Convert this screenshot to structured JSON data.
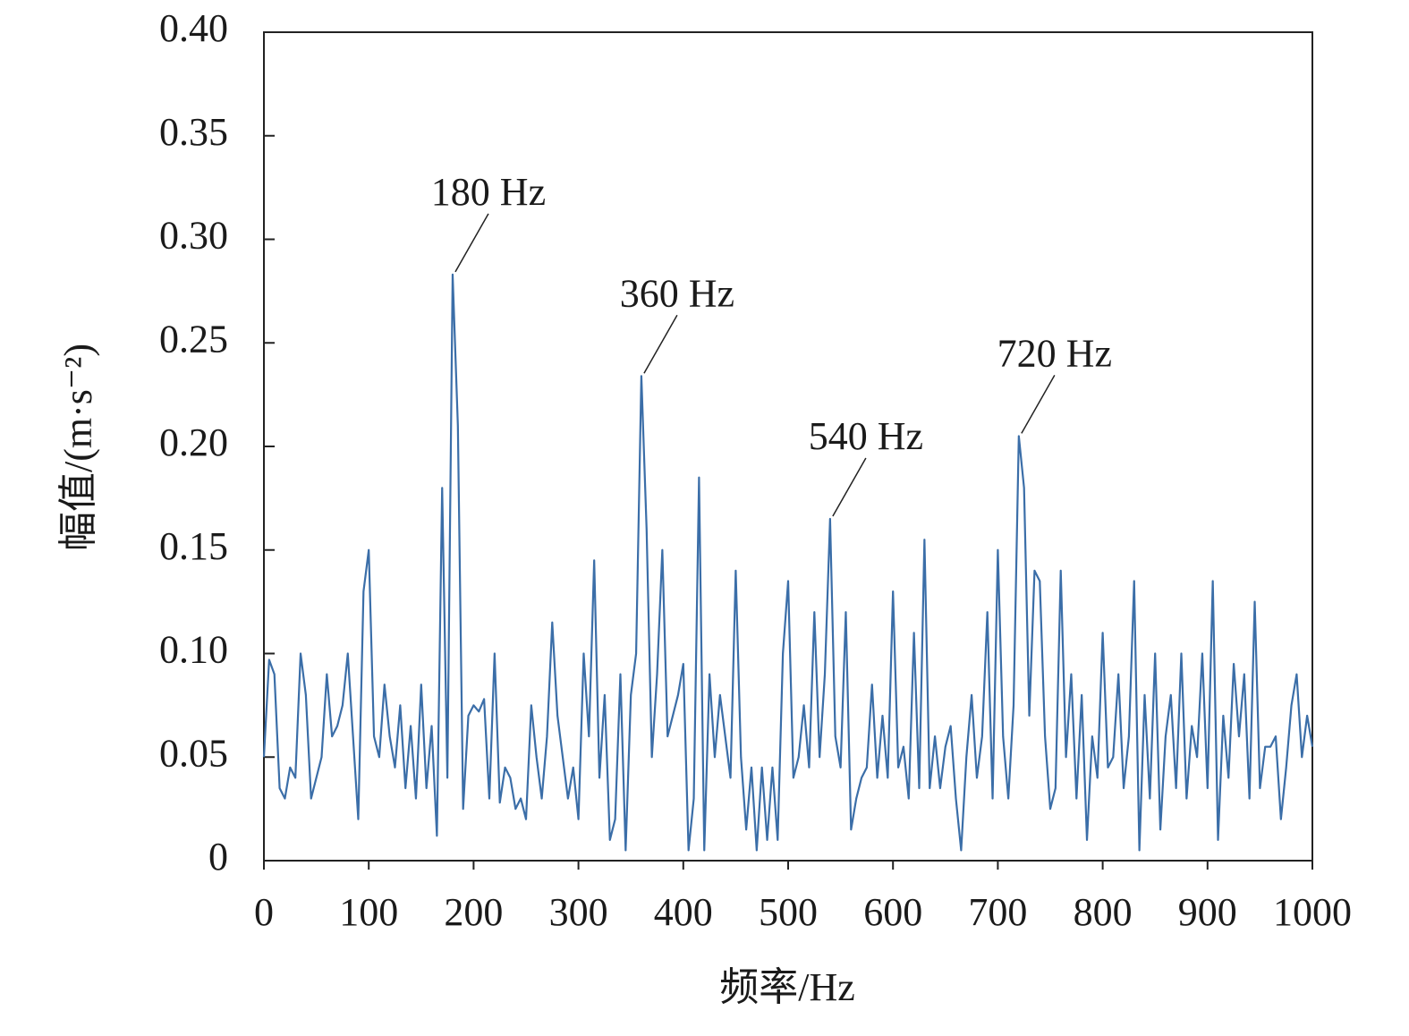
{
  "chart_data": {
    "type": "line",
    "xlabel": "频率/Hz",
    "ylabel": "幅值/(m·s⁻²)",
    "xlim": [
      0,
      1000
    ],
    "ylim": [
      0,
      0.4
    ],
    "xticks": [
      0,
      100,
      200,
      300,
      400,
      500,
      600,
      700,
      800,
      900,
      1000
    ],
    "yticks": [
      0,
      0.05,
      {
        "value": 0.1,
        "label": "0.10"
      },
      0.15,
      {
        "value": 0.2,
        "label": "0.20"
      },
      0.25,
      {
        "value": 0.3,
        "label": "0.30"
      },
      0.35,
      {
        "value": 0.4,
        "label": "0.40"
      }
    ],
    "grid": false,
    "series": [
      {
        "color": "#3b6ea8",
        "x": [
          0,
          5,
          10,
          15,
          20,
          25,
          30,
          35,
          40,
          45,
          50,
          55,
          60,
          65,
          70,
          75,
          80,
          85,
          90,
          95,
          100,
          105,
          110,
          115,
          120,
          125,
          130,
          135,
          140,
          145,
          150,
          155,
          160,
          165,
          170,
          175,
          180,
          185,
          190,
          195,
          200,
          205,
          210,
          215,
          220,
          225,
          230,
          235,
          240,
          245,
          250,
          255,
          260,
          265,
          270,
          275,
          280,
          285,
          290,
          295,
          300,
          305,
          310,
          315,
          320,
          325,
          330,
          335,
          340,
          345,
          350,
          355,
          360,
          365,
          370,
          375,
          380,
          385,
          390,
          395,
          400,
          405,
          410,
          415,
          420,
          425,
          430,
          435,
          440,
          445,
          450,
          455,
          460,
          465,
          470,
          475,
          480,
          485,
          490,
          495,
          500,
          505,
          510,
          515,
          520,
          525,
          530,
          535,
          540,
          545,
          550,
          555,
          560,
          565,
          570,
          575,
          580,
          585,
          590,
          595,
          600,
          605,
          610,
          615,
          620,
          625,
          630,
          635,
          640,
          645,
          650,
          655,
          660,
          665,
          670,
          675,
          680,
          685,
          690,
          695,
          700,
          705,
          710,
          715,
          720,
          725,
          730,
          735,
          740,
          745,
          750,
          755,
          760,
          765,
          770,
          775,
          780,
          785,
          790,
          795,
          800,
          805,
          810,
          815,
          820,
          825,
          830,
          835,
          840,
          845,
          850,
          855,
          860,
          865,
          870,
          875,
          880,
          885,
          890,
          895,
          900,
          905,
          910,
          915,
          920,
          925,
          930,
          935,
          940,
          945,
          950,
          955,
          960,
          965,
          970,
          975,
          980,
          985,
          990,
          995,
          1000
        ],
        "values": [
          0.05,
          0.097,
          0.09,
          0.035,
          0.03,
          0.045,
          0.04,
          0.1,
          0.08,
          0.03,
          0.04,
          0.05,
          0.09,
          0.06,
          0.065,
          0.075,
          0.1,
          0.06,
          0.02,
          0.13,
          0.15,
          0.06,
          0.05,
          0.085,
          0.06,
          0.045,
          0.075,
          0.035,
          0.065,
          0.03,
          0.085,
          0.035,
          0.065,
          0.012,
          0.18,
          0.04,
          0.283,
          0.21,
          0.025,
          0.07,
          0.075,
          0.072,
          0.078,
          0.03,
          0.1,
          0.028,
          0.045,
          0.04,
          0.025,
          0.03,
          0.02,
          0.075,
          0.05,
          0.03,
          0.06,
          0.115,
          0.07,
          0.05,
          0.03,
          0.045,
          0.02,
          0.1,
          0.06,
          0.145,
          0.04,
          0.08,
          0.01,
          0.02,
          0.09,
          0.005,
          0.08,
          0.1,
          0.234,
          0.16,
          0.05,
          0.09,
          0.15,
          0.06,
          0.07,
          0.08,
          0.095,
          0.005,
          0.03,
          0.185,
          0.005,
          0.09,
          0.05,
          0.08,
          0.06,
          0.04,
          0.14,
          0.05,
          0.015,
          0.045,
          0.005,
          0.045,
          0.01,
          0.045,
          0.01,
          0.1,
          0.135,
          0.04,
          0.05,
          0.075,
          0.045,
          0.12,
          0.05,
          0.09,
          0.165,
          0.06,
          0.045,
          0.12,
          0.015,
          0.03,
          0.04,
          0.045,
          0.085,
          0.04,
          0.07,
          0.04,
          0.13,
          0.045,
          0.055,
          0.03,
          0.11,
          0.035,
          0.155,
          0.035,
          0.06,
          0.035,
          0.055,
          0.065,
          0.03,
          0.005,
          0.05,
          0.08,
          0.04,
          0.06,
          0.12,
          0.03,
          0.15,
          0.06,
          0.03,
          0.075,
          0.205,
          0.18,
          0.07,
          0.14,
          0.135,
          0.06,
          0.025,
          0.035,
          0.14,
          0.05,
          0.09,
          0.03,
          0.08,
          0.01,
          0.06,
          0.04,
          0.11,
          0.045,
          0.05,
          0.09,
          0.035,
          0.06,
          0.135,
          0.005,
          0.08,
          0.03,
          0.1,
          0.015,
          0.06,
          0.08,
          0.035,
          0.1,
          0.03,
          0.065,
          0.05,
          0.1,
          0.035,
          0.135,
          0.01,
          0.07,
          0.04,
          0.095,
          0.06,
          0.09,
          0.03,
          0.125,
          0.035,
          0.055,
          0.055,
          0.06,
          0.02,
          0.045,
          0.075,
          0.09,
          0.05,
          0.07,
          0.055
        ]
      }
    ],
    "annotations": [
      {
        "text": "180 Hz",
        "x": 180,
        "y": 0.283
      },
      {
        "text": "360 Hz",
        "x": 360,
        "y": 0.234
      },
      {
        "text": "540 Hz",
        "x": 540,
        "y": 0.165
      },
      {
        "text": "720 Hz",
        "x": 720,
        "y": 0.205
      }
    ]
  }
}
